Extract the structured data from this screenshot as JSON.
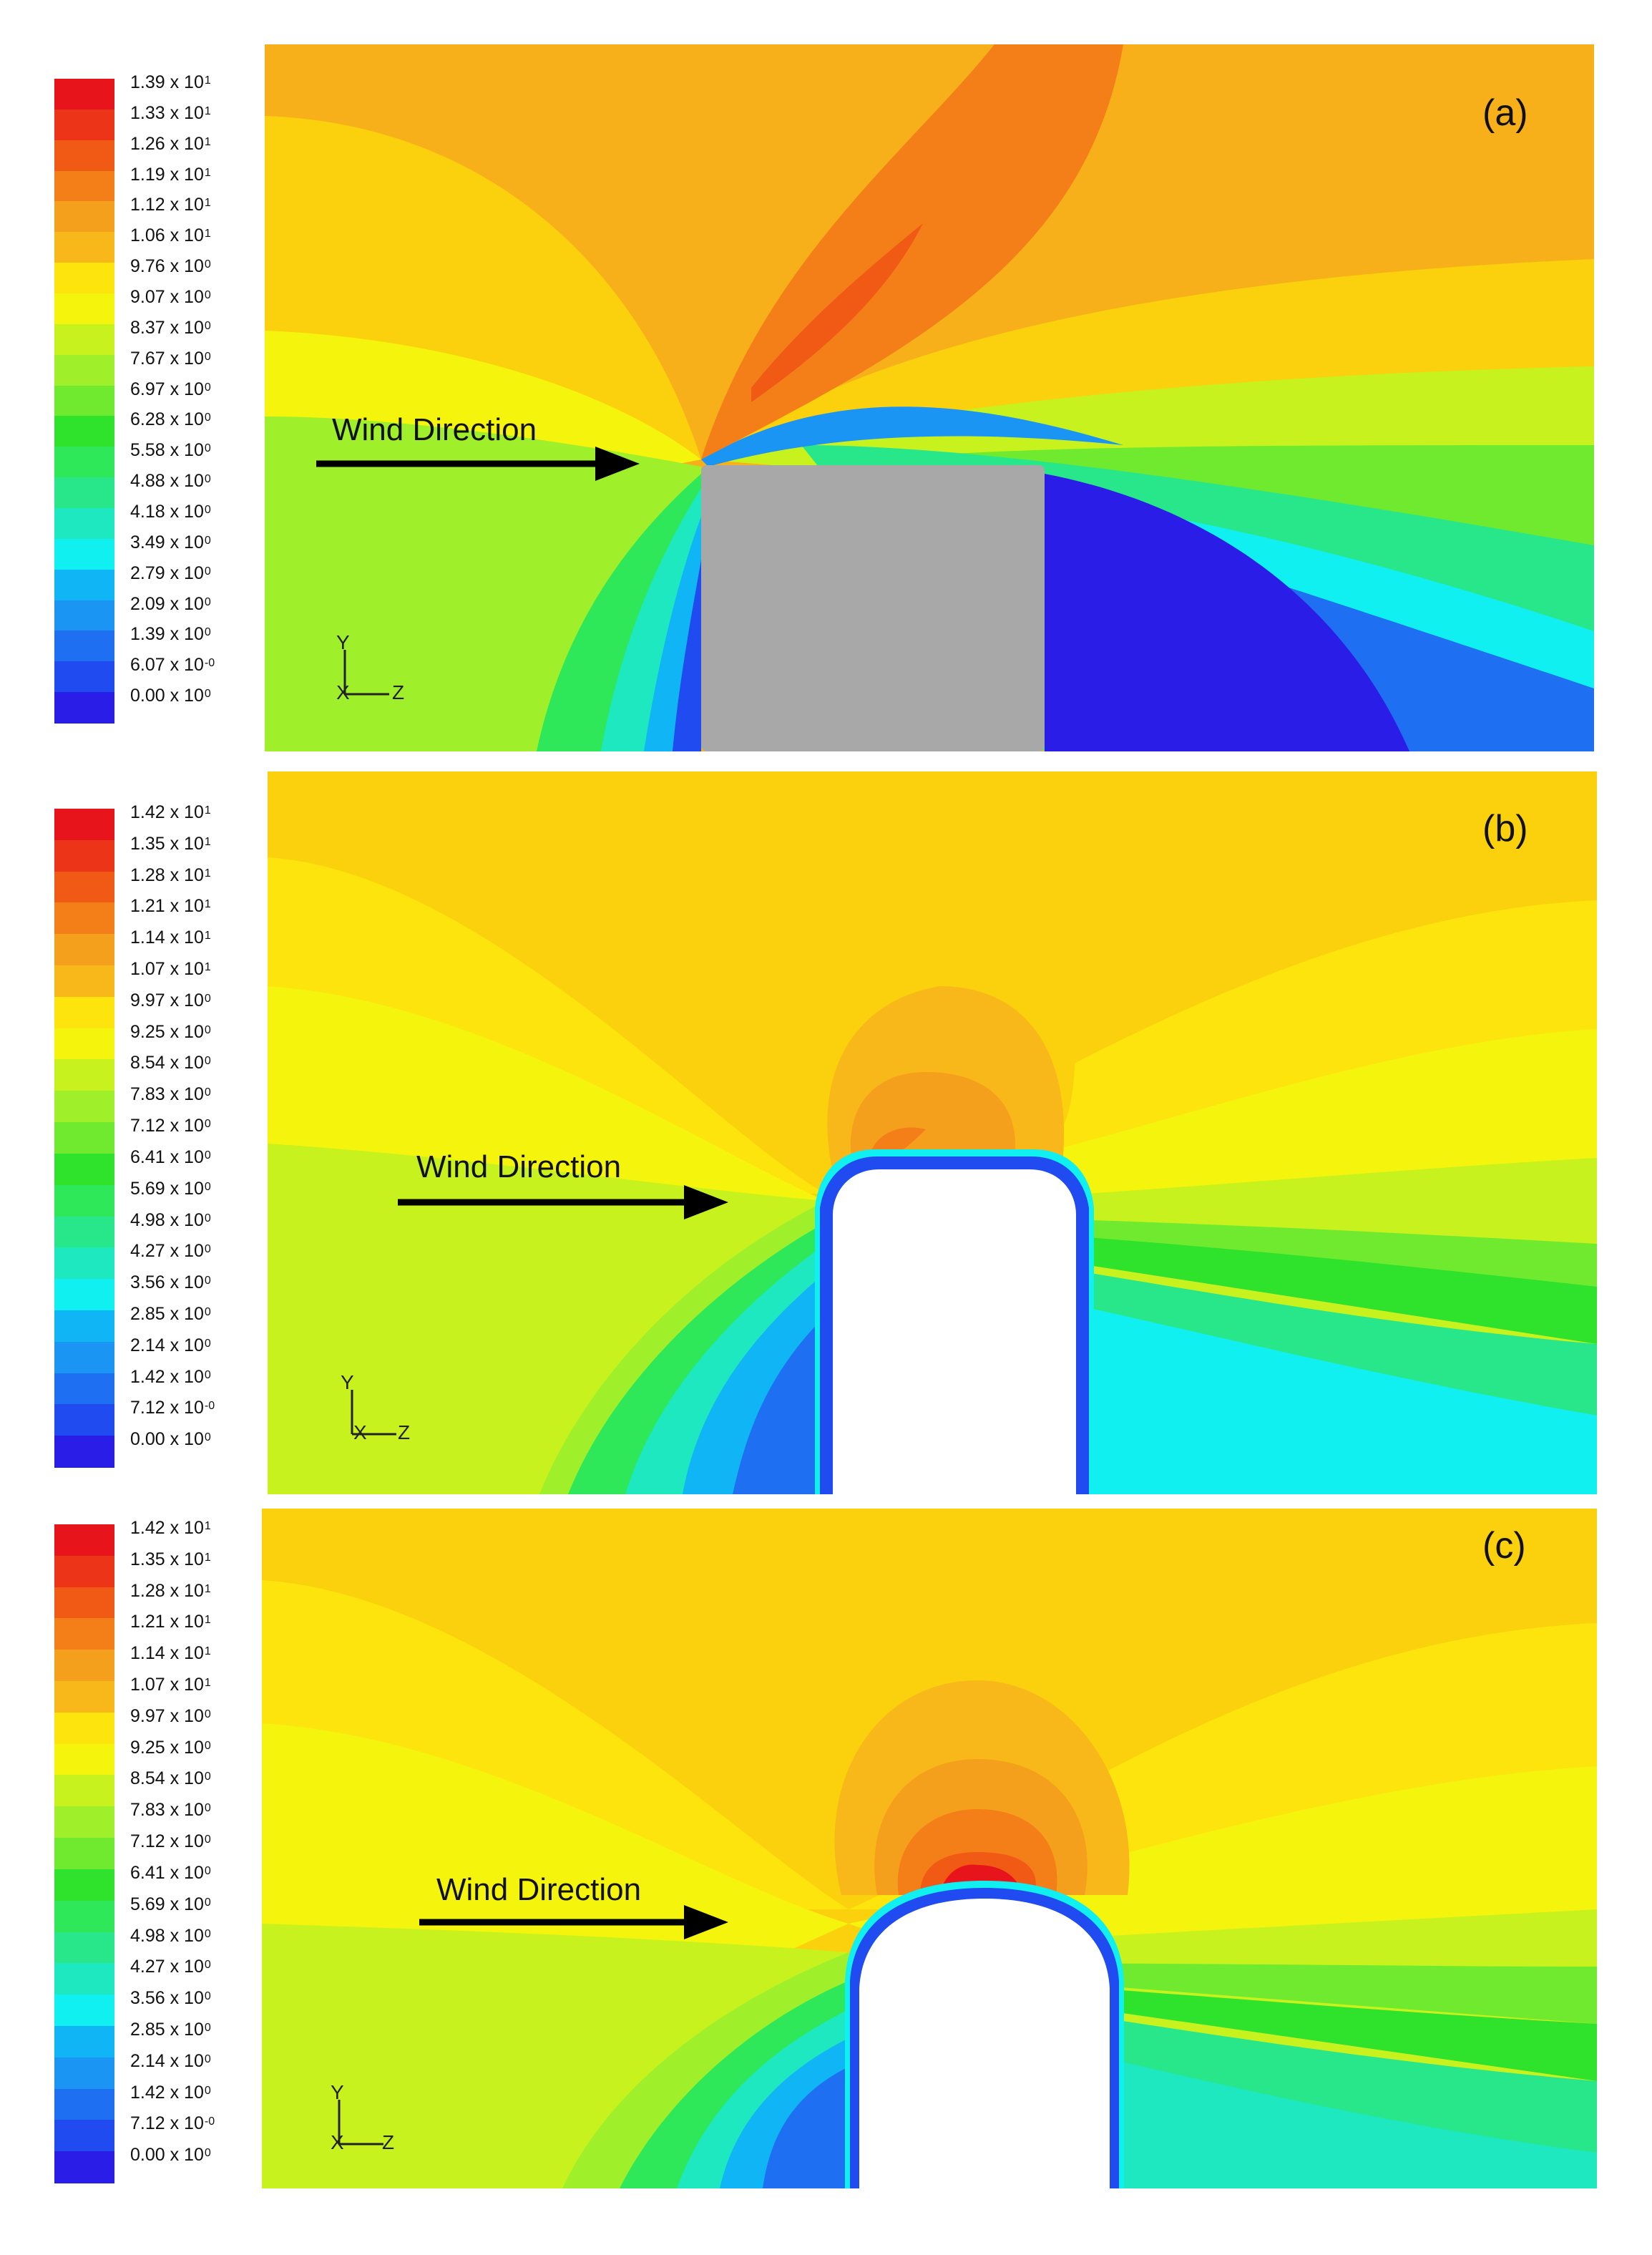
{
  "colormap": [
    "#2a1de8",
    "#1f4bf0",
    "#1e6ff2",
    "#1a95f3",
    "#10b5f5",
    "#0fd6f6",
    "#10f0f0",
    "#1de8c0",
    "#28e68a",
    "#2ee85a",
    "#2fe22b",
    "#70ea2e",
    "#9ff02a",
    "#c8f21e",
    "#f4f40c",
    "#fde40c",
    "#fbd00c",
    "#f8b81a",
    "#f5a01c",
    "#f47e18",
    "#f05a14",
    "#ec3418",
    "#e8141c"
  ],
  "panels": [
    {
      "label": "(a)",
      "wind_label": "Wind Direction",
      "axis": {
        "y": "Y",
        "x": "X",
        "z": "Z"
      },
      "legend_values": [
        "1.39 x 10",
        "1.33 x 10",
        "1.26 x 10",
        "1.19 x 10",
        "1.12 x 10",
        "1.06 x 10",
        "9.76 x 10",
        "9.07 x 10",
        "8.37 x 10",
        "7.67 x 10",
        "6.97 x 10",
        "6.28 x 10",
        "5.58 x 10",
        "4.88 x 10",
        "4.18 x 10",
        "3.49 x 10",
        "2.79 x 10",
        "2.09 x 10",
        "1.39 x 10",
        "6.07 x 10",
        "0.00 x 10"
      ],
      "legend_exponents": [
        "1",
        "1",
        "1",
        "1",
        "1",
        "1",
        "0",
        "0",
        "0",
        "0",
        "0",
        "0",
        "0",
        "0",
        "0",
        "0",
        "0",
        "0",
        "0",
        "-0",
        "0"
      ],
      "obstacle": "rectangle"
    },
    {
      "label": "(b)",
      "wind_label": "Wind Direction",
      "axis": {
        "y": "Y",
        "x": "X",
        "z": "Z"
      },
      "legend_values": [
        "1.42 x 10",
        "1.35 x 10",
        "1.28 x 10",
        "1.21 x 10",
        "1.14 x 10",
        "1.07 x 10",
        "9.97 x 10",
        "9.25 x 10",
        "8.54 x 10",
        "7.83 x 10",
        "7.12 x 10",
        "6.41 x 10",
        "5.69 x 10",
        "4.98 x 10",
        "4.27 x 10",
        "3.56 x 10",
        "2.85 x 10",
        "2.14 x 10",
        "1.42 x 10",
        "7.12 x 10",
        "0.00 x 10"
      ],
      "legend_exponents": [
        "1",
        "1",
        "1",
        "1",
        "1",
        "1",
        "0",
        "0",
        "0",
        "0",
        "0",
        "0",
        "0",
        "0",
        "0",
        "0",
        "0",
        "0",
        "0",
        "-0",
        "0"
      ],
      "obstacle": "rounded-rectangle"
    },
    {
      "label": "(c)",
      "wind_label": "Wind Direction",
      "axis": {
        "y": "Y",
        "x": "X",
        "z": "Z"
      },
      "legend_values": [
        "1.42 x 10",
        "1.35 x 10",
        "1.28 x 10",
        "1.21 x 10",
        "1.14 x 10",
        "1.07 x 10",
        "9.97 x 10",
        "9.25 x 10",
        "8.54 x 10",
        "7.83 x 10",
        "7.12 x 10",
        "6.41 x 10",
        "5.69 x 10",
        "4.98 x 10",
        "4.27 x 10",
        "3.56 x 10",
        "2.85 x 10",
        "2.14 x 10",
        "1.42 x 10",
        "7.12 x 10",
        "0.00 x 10"
      ],
      "legend_exponents": [
        "1",
        "1",
        "1",
        "1",
        "1",
        "1",
        "0",
        "0",
        "0",
        "0",
        "0",
        "0",
        "0",
        "0",
        "0",
        "0",
        "0",
        "0",
        "0",
        "-0",
        "0"
      ],
      "obstacle": "arch"
    }
  ]
}
